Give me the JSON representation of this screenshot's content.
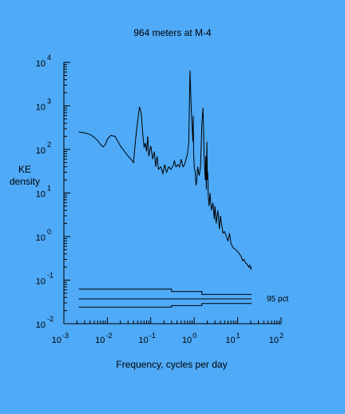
{
  "chart_data": {
    "type": "line",
    "title": "964 meters at M-4",
    "xlabel": "Frequency, cycles per day",
    "ylabel": [
      "KE",
      "density"
    ],
    "x_scale": "log",
    "y_scale": "log",
    "xlim": [
      0.001,
      100
    ],
    "ylim": [
      0.01,
      10000
    ],
    "x_ticks": [
      {
        "base": "10",
        "exp": "-3"
      },
      {
        "base": "10",
        "exp": "-2"
      },
      {
        "base": "10",
        "exp": "-1"
      },
      {
        "base": "10",
        "exp": "0"
      },
      {
        "base": "10",
        "exp": "1"
      },
      {
        "base": "10",
        "exp": "2"
      }
    ],
    "y_ticks": [
      {
        "base": "10",
        "exp": "-2"
      },
      {
        "base": "10",
        "exp": "-1"
      },
      {
        "base": "10",
        "exp": "0"
      },
      {
        "base": "10",
        "exp": "1"
      },
      {
        "base": "10",
        "exp": "2"
      },
      {
        "base": "10",
        "exp": "3"
      },
      {
        "base": "10",
        "exp": "4"
      }
    ],
    "series": [
      {
        "x": [
          0.0022,
          0.003,
          0.004,
          0.005,
          0.006,
          0.007,
          0.008,
          0.009,
          0.01,
          0.012,
          0.015,
          0.02,
          0.025,
          0.03,
          0.035,
          0.04,
          0.045,
          0.05,
          0.055,
          0.06,
          0.065,
          0.07,
          0.075,
          0.08,
          0.085,
          0.09,
          0.1,
          0.11,
          0.12,
          0.13,
          0.14,
          0.15,
          0.17,
          0.19,
          0.21,
          0.23,
          0.26,
          0.29,
          0.32,
          0.35,
          0.38,
          0.42,
          0.46,
          0.5,
          0.55,
          0.6,
          0.65,
          0.7,
          0.75,
          0.8,
          0.85,
          0.9,
          0.93,
          0.95,
          0.97,
          1.0,
          1.02,
          1.05,
          1.1,
          1.15,
          1.2,
          1.3,
          1.4,
          1.5,
          1.6,
          1.7,
          1.8,
          1.85,
          1.9,
          1.93,
          1.96,
          2.0,
          2.05,
          2.1,
          2.2,
          2.3,
          2.5,
          2.7,
          2.9,
          3.0,
          3.2,
          3.5,
          3.8,
          4.0,
          4.3,
          4.6,
          5.0,
          5.5,
          6.0,
          6.5,
          7.0,
          7.5,
          8.0,
          9.0,
          10.0,
          11.0,
          12.0,
          13.0,
          14.0,
          15.0,
          16.0,
          17.0,
          18.0,
          19.0,
          20.0,
          21.0
        ],
        "y": [
          250,
          240,
          220,
          190,
          160,
          130,
          115,
          130,
          170,
          210,
          200,
          120,
          90,
          70,
          60,
          50,
          180,
          450,
          950,
          700,
          250,
          110,
          140,
          90,
          200,
          70,
          120,
          60,
          90,
          40,
          70,
          35,
          40,
          28,
          45,
          30,
          40,
          35,
          40,
          55,
          40,
          45,
          40,
          60,
          40,
          45,
          60,
          80,
          150,
          6500,
          900,
          300,
          150,
          600,
          80,
          40,
          35,
          30,
          15,
          20,
          40,
          25,
          40,
          400,
          900,
          60,
          20,
          70,
          12,
          50,
          150,
          20,
          30,
          9,
          5,
          10,
          4,
          6,
          2.5,
          5,
          2,
          4,
          1.5,
          3,
          1.8,
          1.2,
          1.3,
          1,
          0.8,
          1.2,
          0.7,
          0.6,
          0.55,
          0.5,
          0.45,
          0.4,
          0.35,
          0.28,
          0.3,
          0.25,
          0.24,
          0.22,
          0.2,
          0.22,
          0.18,
          0.2
        ]
      }
    ],
    "confidence_label": "95 pct",
    "confidence_lines": [
      {
        "x": [
          0.0022,
          0.3,
          0.3,
          1.5,
          1.5,
          21
        ],
        "y": [
          0.062,
          0.062,
          0.055,
          0.055,
          0.047,
          0.047
        ]
      },
      {
        "x": [
          0.0022,
          0.3,
          0.3,
          1.5,
          1.5,
          21
        ],
        "y": [
          0.037,
          0.037,
          0.037,
          0.037,
          0.037,
          0.037
        ]
      },
      {
        "x": [
          0.0022,
          0.3,
          0.3,
          1.5,
          1.5,
          21
        ],
        "y": [
          0.024,
          0.024,
          0.026,
          0.026,
          0.029,
          0.029
        ]
      }
    ]
  }
}
